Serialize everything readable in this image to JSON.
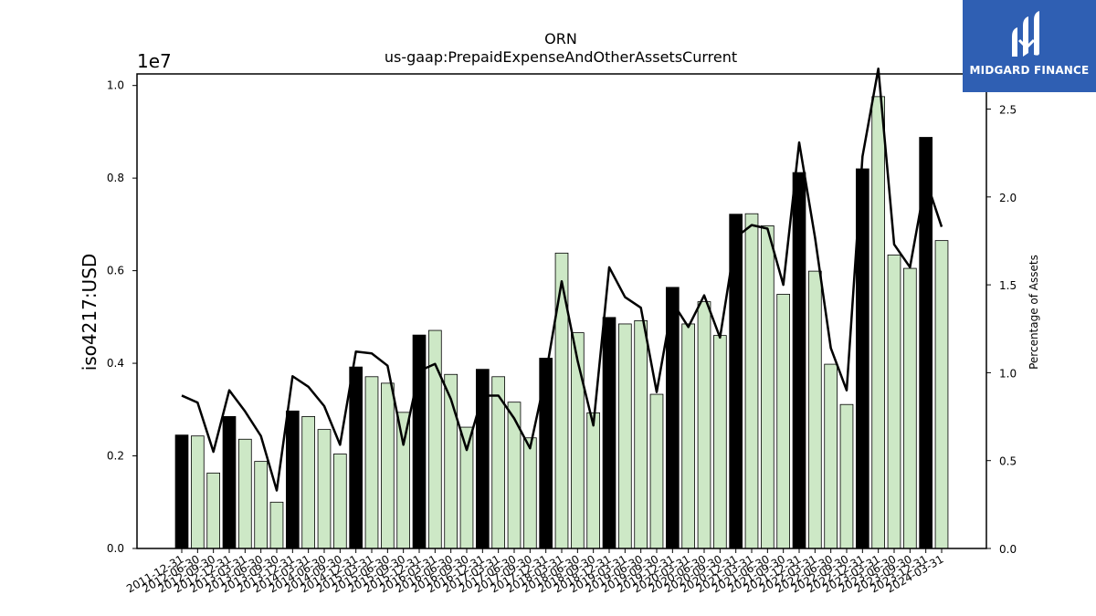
{
  "brand": {
    "name": "MIDGARD FINANCE",
    "bg_color": "#2f5fb3",
    "icon": "midgard-m-logo-icon"
  },
  "chart_data": {
    "type": "bar",
    "title": "ORN",
    "subtitle": "us-gaap:PrepaidExpenseAndOtherAssetsCurrent",
    "ylabel": "iso4217:USD",
    "y_offset_label": "1e7",
    "y2label": "Percentage of Assets",
    "ylim": [
      0,
      10250000
    ],
    "y2lim": [
      0,
      2.7
    ],
    "yticks": [
      0,
      2000000,
      4000000,
      6000000,
      8000000,
      10000000
    ],
    "ytick_labels": [
      "0.0",
      "0.2",
      "0.4",
      "0.6",
      "0.8",
      "1.0"
    ],
    "y2ticks": [
      0,
      0.5,
      1.0,
      1.5,
      2.0,
      2.5
    ],
    "y2tick_labels": [
      "0.0",
      "0.5",
      "1.0",
      "1.5",
      "2.0",
      "2.5"
    ],
    "colors": {
      "annual": "#000000",
      "quarterly": "#cde8c6",
      "line": "#000000"
    },
    "categories": [
      "2011-12-31",
      "2012-06-30",
      "2012-09-30",
      "2012-12-31",
      "2013-03-31",
      "2013-06-30",
      "2013-09-30",
      "2013-12-31",
      "2014-03-31",
      "2014-06-30",
      "2014-09-30",
      "2014-12-31",
      "2015-03-31",
      "2015-06-30",
      "2015-09-30",
      "2015-12-31",
      "2016-03-31",
      "2016-06-30",
      "2016-09-30",
      "2016-12-31",
      "2017-03-31",
      "2017-06-30",
      "2017-09-30",
      "2017-12-31",
      "2018-03-31",
      "2018-06-30",
      "2018-09-30",
      "2018-12-31",
      "2019-03-31",
      "2019-06-30",
      "2019-09-30",
      "2019-12-31",
      "2020-03-31",
      "2020-06-30",
      "2020-09-30",
      "2020-12-31",
      "2021-03-31",
      "2021-06-30",
      "2021-09-30",
      "2021-12-31",
      "2022-03-31",
      "2022-06-30",
      "2022-09-30",
      "2022-12-31",
      "2023-03-31",
      "2023-06-30",
      "2023-09-30",
      "2023-12-31",
      "2024-03-31"
    ],
    "series": [
      {
        "type": "bar",
        "values": [
          2450000,
          2430000,
          1630000,
          2850000,
          2360000,
          1880000,
          1000000,
          2970000,
          2850000,
          2570000,
          2040000,
          3920000,
          3710000,
          3570000,
          2940000,
          4610000,
          4710000,
          3760000,
          2620000,
          3870000,
          3710000,
          3160000,
          2390000,
          4110000,
          6380000,
          4660000,
          2930000,
          4990000,
          4850000,
          4920000,
          3330000,
          5640000,
          4850000,
          5330000,
          4600000,
          7220000,
          7230000,
          6970000,
          5490000,
          8120000,
          5990000,
          3980000,
          3110000,
          8200000,
          9760000,
          6340000,
          6050000,
          8880000,
          6650000
        ],
        "annual_flags": [
          true,
          false,
          false,
          true,
          false,
          false,
          false,
          true,
          false,
          false,
          false,
          true,
          false,
          false,
          false,
          true,
          false,
          false,
          false,
          true,
          false,
          false,
          false,
          true,
          false,
          false,
          false,
          true,
          false,
          false,
          false,
          true,
          false,
          false,
          false,
          true,
          false,
          false,
          false,
          true,
          false,
          false,
          false,
          true,
          false,
          false,
          false,
          true,
          false
        ]
      },
      {
        "type": "line",
        "axis": "right",
        "values": [
          0.87,
          0.83,
          0.55,
          0.9,
          0.78,
          0.64,
          0.33,
          0.98,
          0.92,
          0.81,
          0.59,
          1.12,
          1.11,
          1.04,
          0.59,
          1.01,
          1.05,
          0.85,
          0.56,
          0.87,
          0.87,
          0.74,
          0.57,
          0.99,
          1.52,
          1.07,
          0.7,
          1.6,
          1.43,
          1.37,
          0.89,
          1.4,
          1.26,
          1.44,
          1.2,
          1.77,
          1.84,
          1.82,
          1.5,
          2.31,
          1.77,
          1.14,
          0.9,
          2.23,
          2.73,
          1.73,
          1.6,
          2.1,
          1.83
        ]
      }
    ]
  }
}
